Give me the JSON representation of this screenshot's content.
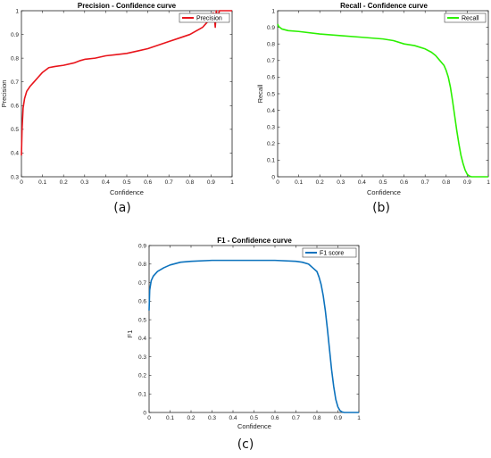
{
  "panels": [
    {
      "caption": "(a)",
      "chart_data": {
        "type": "line",
        "title": "Precision - Confidence curve",
        "xlabel": "Confidence",
        "ylabel": "Precision",
        "xlim": [
          0,
          1
        ],
        "ylim": [
          0.3,
          1
        ],
        "xticks": [
          0,
          0.1,
          0.2,
          0.3,
          0.4,
          0.5,
          0.6,
          0.7,
          0.8,
          0.9,
          1
        ],
        "yticks": [
          0.3,
          0.4,
          0.5,
          0.6,
          0.7,
          0.8,
          0.9,
          1
        ],
        "xtick_labels": [
          "0",
          "0.1",
          "0.2",
          "0.3",
          "0.4",
          "0.5",
          "0.6",
          "0.7",
          "0.8",
          "0.9",
          "1"
        ],
        "ytick_labels": [
          "0.3",
          "0.4",
          "0.5",
          "0.6",
          "0.7",
          "0.8",
          "0.9",
          "1"
        ],
        "legend_position": "top-right",
        "grid": false,
        "series": [
          {
            "name": "Precision",
            "color": "#e8141b",
            "x": [
              0,
              0.003,
              0.008,
              0.015,
              0.025,
              0.04,
              0.06,
              0.08,
              0.1,
              0.13,
              0.16,
              0.2,
              0.25,
              0.28,
              0.3,
              0.35,
              0.4,
              0.45,
              0.5,
              0.55,
              0.6,
              0.65,
              0.7,
              0.75,
              0.8,
              0.83,
              0.85,
              0.86,
              0.87,
              0.88,
              0.89,
              0.9,
              0.91,
              0.915,
              0.92,
              0.925,
              0.93,
              0.94,
              0.96,
              1.0
            ],
            "y": [
              0.39,
              0.5,
              0.59,
              0.63,
              0.66,
              0.68,
              0.7,
              0.72,
              0.74,
              0.76,
              0.765,
              0.77,
              0.78,
              0.79,
              0.795,
              0.8,
              0.81,
              0.815,
              0.82,
              0.83,
              0.84,
              0.855,
              0.87,
              0.885,
              0.9,
              0.915,
              0.925,
              0.93,
              0.94,
              0.95,
              0.96,
              0.97,
              0.99,
              0.98,
              0.93,
              1.0,
              0.97,
              1.0,
              1.0,
              1.0
            ]
          }
        ]
      }
    },
    {
      "caption": "(b)",
      "chart_data": {
        "type": "line",
        "title": "Recall - Confidence curve",
        "xlabel": "Confidence",
        "ylabel": "Recall",
        "xlim": [
          0,
          1
        ],
        "ylim": [
          0,
          1
        ],
        "xticks": [
          0,
          0.1,
          0.2,
          0.3,
          0.4,
          0.5,
          0.6,
          0.7,
          0.8,
          0.9,
          1
        ],
        "yticks": [
          0,
          0.1,
          0.2,
          0.3,
          0.4,
          0.5,
          0.6,
          0.7,
          0.8,
          0.9,
          1
        ],
        "xtick_labels": [
          "0",
          "0.1",
          "0.2",
          "0.3",
          "0.4",
          "0.5",
          "0.6",
          "0.7",
          "0.8",
          "0.9",
          "1"
        ],
        "ytick_labels": [
          "0",
          "0.1",
          "0.2",
          "0.3",
          "0.4",
          "0.5",
          "0.6",
          "0.7",
          "0.8",
          "0.9",
          "1"
        ],
        "legend_position": "top-right",
        "grid": false,
        "series": [
          {
            "name": "Recall",
            "color": "#2bf000",
            "x": [
              0,
              0.005,
              0.02,
              0.05,
              0.1,
              0.2,
              0.3,
              0.4,
              0.5,
              0.55,
              0.6,
              0.65,
              0.7,
              0.73,
              0.75,
              0.77,
              0.79,
              0.8,
              0.81,
              0.82,
              0.83,
              0.84,
              0.85,
              0.86,
              0.87,
              0.88,
              0.89,
              0.9,
              0.91,
              0.92,
              0.93,
              1.0
            ],
            "y": [
              0.92,
              0.905,
              0.89,
              0.88,
              0.875,
              0.86,
              0.85,
              0.84,
              0.83,
              0.82,
              0.8,
              0.79,
              0.77,
              0.75,
              0.73,
              0.7,
              0.67,
              0.64,
              0.6,
              0.54,
              0.46,
              0.37,
              0.28,
              0.2,
              0.13,
              0.08,
              0.04,
              0.015,
              0.005,
              0,
              0,
              0
            ]
          }
        ]
      }
    },
    {
      "caption": "(c)",
      "chart_data": {
        "type": "line",
        "title": "F1 - Confidence curve",
        "xlabel": "Confidence",
        "ylabel": "F1",
        "xlim": [
          0,
          1
        ],
        "ylim": [
          0,
          0.9
        ],
        "xticks": [
          0,
          0.1,
          0.2,
          0.3,
          0.4,
          0.5,
          0.6,
          0.7,
          0.8,
          0.9,
          1
        ],
        "yticks": [
          0,
          0.1,
          0.2,
          0.3,
          0.4,
          0.5,
          0.6,
          0.7,
          0.8,
          0.9
        ],
        "xtick_labels": [
          "0",
          "0.1",
          "0.2",
          "0.3",
          "0.4",
          "0.5",
          "0.6",
          "0.7",
          "0.8",
          "0.9",
          "1"
        ],
        "ytick_labels": [
          "0",
          "0.1",
          "0.2",
          "0.3",
          "0.4",
          "0.5",
          "0.6",
          "0.7",
          "0.8",
          "0.9"
        ],
        "legend_position": "top-right",
        "grid": false,
        "series": [
          {
            "name": "F1 score",
            "color": "#0c72bd",
            "x": [
              0,
              0.003,
              0.01,
              0.02,
              0.04,
              0.07,
              0.1,
              0.15,
              0.2,
              0.3,
              0.4,
              0.5,
              0.6,
              0.7,
              0.73,
              0.76,
              0.78,
              0.8,
              0.81,
              0.82,
              0.83,
              0.84,
              0.85,
              0.86,
              0.87,
              0.88,
              0.89,
              0.9,
              0.91,
              0.92,
              0.93,
              1.0
            ],
            "y": [
              0.55,
              0.66,
              0.71,
              0.735,
              0.76,
              0.78,
              0.795,
              0.81,
              0.815,
              0.82,
              0.82,
              0.82,
              0.82,
              0.815,
              0.81,
              0.8,
              0.78,
              0.76,
              0.73,
              0.69,
              0.63,
              0.55,
              0.45,
              0.34,
              0.23,
              0.14,
              0.07,
              0.03,
              0.01,
              0.003,
              0,
              0
            ]
          }
        ]
      }
    }
  ]
}
